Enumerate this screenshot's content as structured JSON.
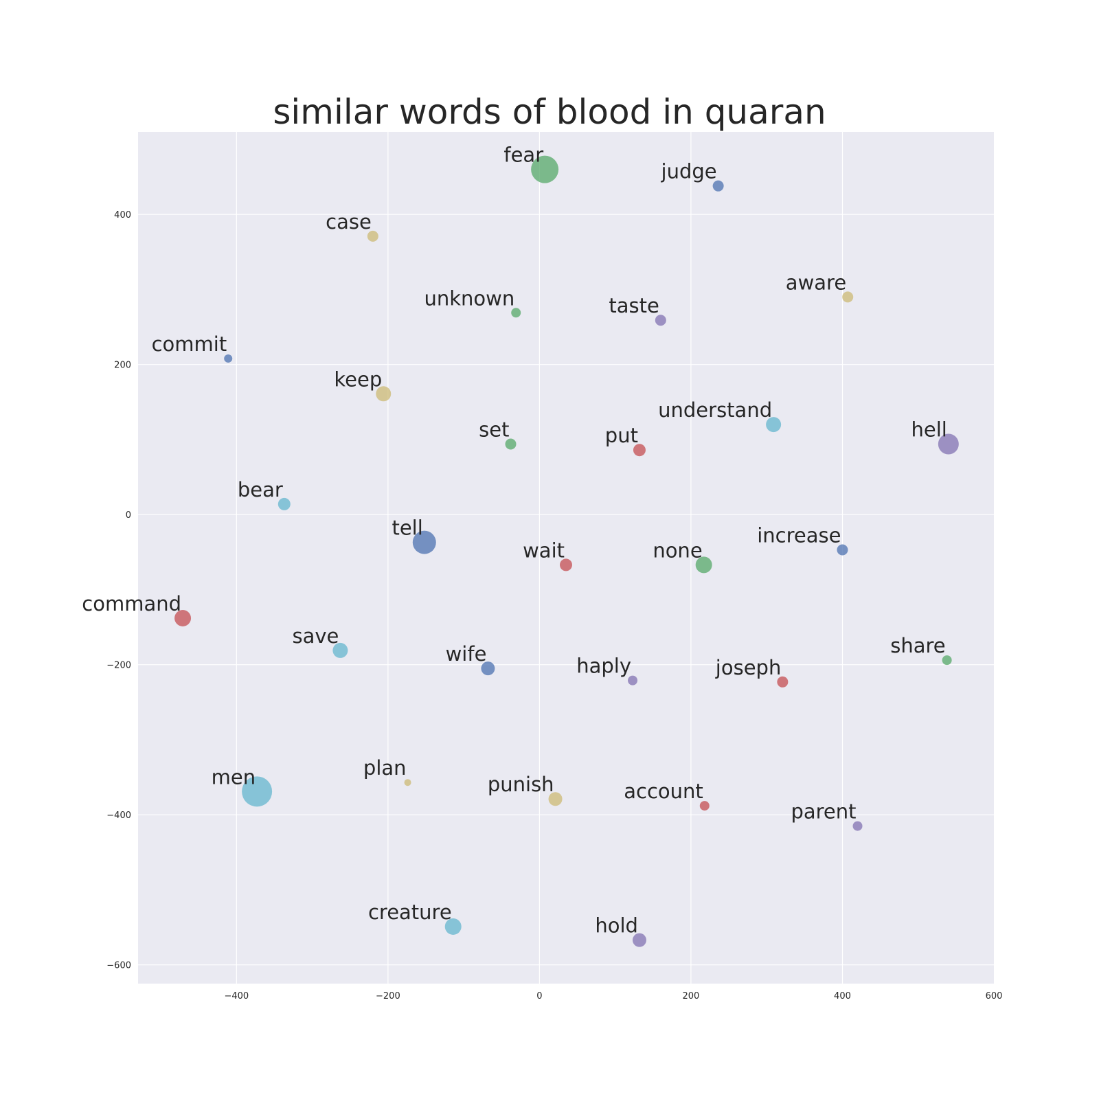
{
  "chart_data": {
    "type": "scatter",
    "title": "similar words of blood in quaran",
    "xlabel": "",
    "ylabel": "",
    "xlim": [
      -530,
      600
    ],
    "ylim": [
      -625,
      510
    ],
    "xticks": [
      -400,
      -200,
      0,
      200,
      400,
      600
    ],
    "yticks": [
      -600,
      -400,
      -200,
      0,
      200,
      400
    ],
    "xtick_labels": [
      "−400",
      "−200",
      "0",
      "200",
      "400",
      "600"
    ],
    "ytick_labels": [
      "−600",
      "−400",
      "−200",
      "0",
      "200",
      "400"
    ],
    "grid": true,
    "background": "#eaeaf2",
    "palette": {
      "blue": "#4c72b0",
      "green": "#55a868",
      "red": "#c44e52",
      "purple": "#8172b2",
      "yellow": "#ccb974",
      "cyan": "#64b5cd"
    },
    "points": [
      {
        "label": "fear",
        "x": 7,
        "y": 460,
        "size": 20,
        "color": "green"
      },
      {
        "label": "judge",
        "x": 236,
        "y": 438,
        "size": 8,
        "color": "blue"
      },
      {
        "label": "case",
        "x": -220,
        "y": 371,
        "size": 8,
        "color": "yellow"
      },
      {
        "label": "aware",
        "x": 407,
        "y": 290,
        "size": 8,
        "color": "yellow"
      },
      {
        "label": "unknown",
        "x": -31,
        "y": 269,
        "size": 7,
        "color": "green"
      },
      {
        "label": "taste",
        "x": 160,
        "y": 259,
        "size": 8,
        "color": "purple"
      },
      {
        "label": "commit",
        "x": -411,
        "y": 208,
        "size": 6,
        "color": "blue"
      },
      {
        "label": "keep",
        "x": -206,
        "y": 161,
        "size": 11,
        "color": "yellow"
      },
      {
        "label": "understand",
        "x": 309,
        "y": 120,
        "size": 11,
        "color": "cyan"
      },
      {
        "label": "set",
        "x": -38,
        "y": 94,
        "size": 8,
        "color": "green"
      },
      {
        "label": "put",
        "x": 132,
        "y": 86,
        "size": 9,
        "color": "red"
      },
      {
        "label": "hell",
        "x": 540,
        "y": 94,
        "size": 15,
        "color": "purple"
      },
      {
        "label": "bear",
        "x": -337,
        "y": 14,
        "size": 9,
        "color": "cyan"
      },
      {
        "label": "tell",
        "x": -152,
        "y": -37,
        "size": 17,
        "color": "blue"
      },
      {
        "label": "wait",
        "x": 35,
        "y": -67,
        "size": 9,
        "color": "red"
      },
      {
        "label": "none",
        "x": 217,
        "y": -67,
        "size": 12,
        "color": "green"
      },
      {
        "label": "increase",
        "x": 400,
        "y": -47,
        "size": 8,
        "color": "blue"
      },
      {
        "label": "command",
        "x": -471,
        "y": -138,
        "size": 12,
        "color": "red"
      },
      {
        "label": "save",
        "x": -263,
        "y": -181,
        "size": 11,
        "color": "cyan"
      },
      {
        "label": "wife",
        "x": -68,
        "y": -205,
        "size": 10,
        "color": "blue"
      },
      {
        "label": "haply",
        "x": 123,
        "y": -221,
        "size": 7,
        "color": "purple"
      },
      {
        "label": "joseph",
        "x": 321,
        "y": -223,
        "size": 8,
        "color": "red"
      },
      {
        "label": "share",
        "x": 538,
        "y": -194,
        "size": 7,
        "color": "green"
      },
      {
        "label": "men",
        "x": -373,
        "y": -369,
        "size": 22,
        "color": "cyan"
      },
      {
        "label": "plan",
        "x": -174,
        "y": -357,
        "size": 5,
        "color": "yellow"
      },
      {
        "label": "punish",
        "x": 21,
        "y": -379,
        "size": 10,
        "color": "yellow"
      },
      {
        "label": "account",
        "x": 218,
        "y": -388,
        "size": 7,
        "color": "red"
      },
      {
        "label": "parent",
        "x": 420,
        "y": -415,
        "size": 7,
        "color": "purple"
      },
      {
        "label": "creature",
        "x": -114,
        "y": -549,
        "size": 12,
        "color": "cyan"
      },
      {
        "label": "hold",
        "x": 132,
        "y": -567,
        "size": 10,
        "color": "purple"
      }
    ]
  }
}
